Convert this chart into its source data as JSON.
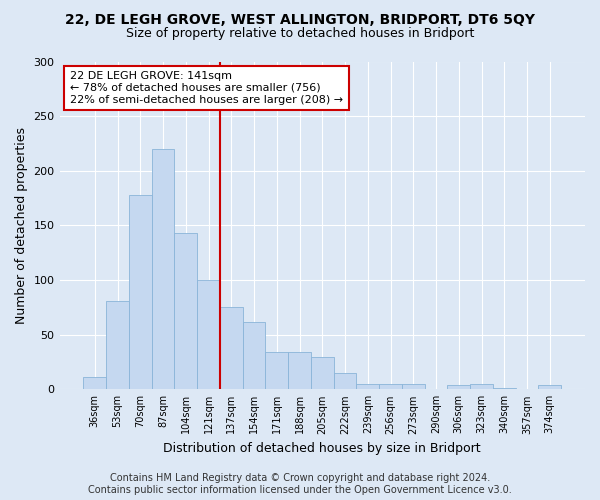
{
  "title": "22, DE LEGH GROVE, WEST ALLINGTON, BRIDPORT, DT6 5QY",
  "subtitle": "Size of property relative to detached houses in Bridport",
  "xlabel": "Distribution of detached houses by size in Bridport",
  "ylabel": "Number of detached properties",
  "bar_labels": [
    "36sqm",
    "53sqm",
    "70sqm",
    "87sqm",
    "104sqm",
    "121sqm",
    "137sqm",
    "154sqm",
    "171sqm",
    "188sqm",
    "205sqm",
    "222sqm",
    "239sqm",
    "256sqm",
    "273sqm",
    "290sqm",
    "306sqm",
    "323sqm",
    "340sqm",
    "357sqm",
    "374sqm"
  ],
  "bar_values": [
    11,
    81,
    178,
    220,
    143,
    100,
    75,
    62,
    34,
    34,
    30,
    15,
    5,
    5,
    5,
    0,
    4,
    5,
    1,
    0,
    4
  ],
  "bar_color": "#c5d8f0",
  "bar_edge_color": "#8ab4d8",
  "vline_x": 5.5,
  "vline_color": "#cc0000",
  "ylim": [
    0,
    300
  ],
  "yticks": [
    0,
    50,
    100,
    150,
    200,
    250,
    300
  ],
  "annotation_text": "22 DE LEGH GROVE: 141sqm\n← 78% of detached houses are smaller (756)\n22% of semi-detached houses are larger (208) →",
  "annotation_box_color": "#ffffff",
  "annotation_box_edge_color": "#cc0000",
  "footer_line1": "Contains HM Land Registry data © Crown copyright and database right 2024.",
  "footer_line2": "Contains public sector information licensed under the Open Government Licence v3.0.",
  "bg_color": "#dde8f5",
  "plot_bg_color": "#dde8f5",
  "grid_color": "#ffffff",
  "title_fontsize": 10,
  "subtitle_fontsize": 9,
  "annot_fontsize": 8,
  "footer_fontsize": 7,
  "ylabel_fontsize": 9,
  "xlabel_fontsize": 9
}
